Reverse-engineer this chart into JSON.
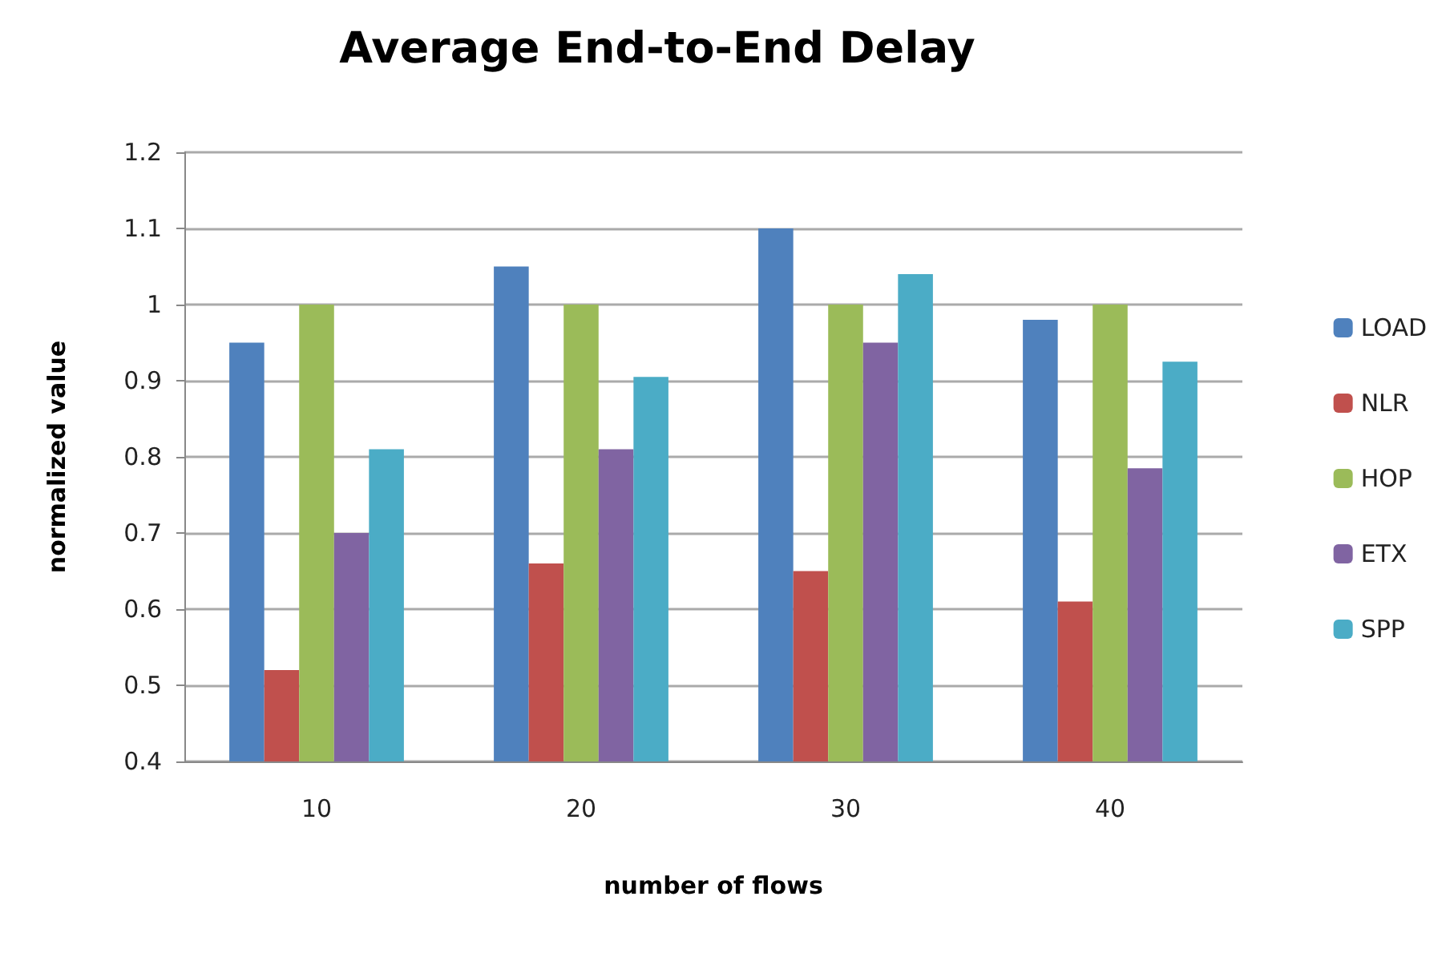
{
  "chart_data": {
    "type": "bar",
    "title": "Average End-to-End Delay",
    "xlabel": "number of flows",
    "ylabel": "normalized value",
    "categories": [
      "10",
      "20",
      "30",
      "40"
    ],
    "series": [
      {
        "name": "LOAD",
        "color": "#4f81bd",
        "values": [
          0.95,
          1.05,
          1.1,
          0.98
        ]
      },
      {
        "name": "NLR",
        "color": "#c0504d",
        "values": [
          0.52,
          0.66,
          0.65,
          0.61
        ]
      },
      {
        "name": "HOP",
        "color": "#9bbb59",
        "values": [
          1.0,
          1.0,
          1.0,
          1.0
        ]
      },
      {
        "name": "ETX",
        "color": "#8064a2",
        "values": [
          0.7,
          0.81,
          0.95,
          0.785
        ]
      },
      {
        "name": "SPP",
        "color": "#4bacc6",
        "values": [
          0.81,
          0.905,
          1.04,
          0.925
        ]
      }
    ],
    "ylim": [
      0.4,
      1.2
    ],
    "yticks": [
      0.4,
      0.5,
      0.6,
      0.7,
      0.8,
      0.9,
      1,
      1.1,
      1.2
    ],
    "grid": "y",
    "legend": "right"
  }
}
